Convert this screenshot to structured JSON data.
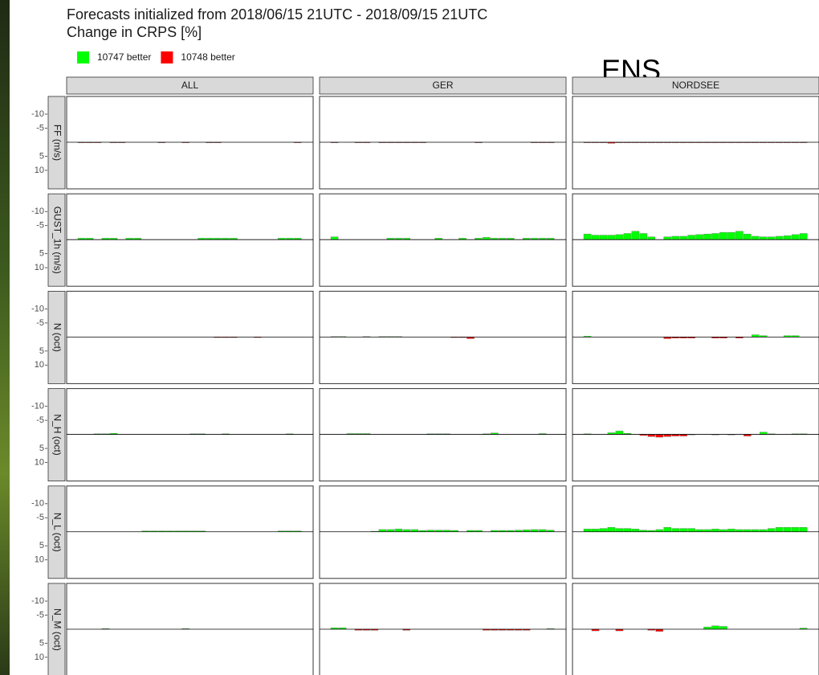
{
  "chart_data": {
    "type": "facet-bar",
    "title": "Forecasts initialized from 2018/06/15 21UTC - 2018/09/15 21UTC",
    "subtitle": "Change in CRPS [%]",
    "overlay": "ENS",
    "series": [
      {
        "name": "10747 better",
        "color": "#00ff00"
      },
      {
        "name": "10748 better",
        "color": "#ff0000"
      }
    ],
    "columns": [
      "ALL",
      "GER",
      "NORDSEE"
    ],
    "rows": [
      "FF (m/s)",
      "GUST_1h (m/s)",
      "N (oct)",
      "N_H (oct)",
      "N_L (oct)",
      "N_M (oct)"
    ],
    "ylim": [
      -16.3,
      16.6
    ],
    "yticks": [
      -10,
      -5,
      5,
      10
    ],
    "panels": [
      [
        [
          0.2,
          0.2,
          0.2,
          0,
          0.2,
          0.2,
          0,
          0,
          0,
          0,
          0.2,
          0,
          0,
          0.2,
          0,
          0,
          0.2,
          0.2,
          0,
          0,
          0,
          0,
          0,
          0,
          0,
          0,
          0,
          0.2
        ],
        [
          0.2,
          0,
          0,
          0.2,
          0.2,
          0,
          0.2,
          0.2,
          0.2,
          0.2,
          0.2,
          0.2,
          0,
          0,
          0,
          0,
          0,
          0,
          0.2,
          0,
          0,
          0,
          0,
          0,
          0,
          0.2,
          0.2,
          0.2
        ],
        [
          0.2,
          0.2,
          0.2,
          0.4,
          0.2,
          0.2,
          0.2,
          0.2,
          0.2,
          0.2,
          0.2,
          0.2,
          0.2,
          0.2,
          0.2,
          0.2,
          0.2,
          0.2,
          0.2,
          0.2,
          0.2,
          0.2,
          0.2,
          0.2,
          0.2,
          0.2,
          0.2,
          0.2
        ]
      ],
      [
        [
          -0.5,
          -0.5,
          0,
          -0.5,
          -0.5,
          0,
          -0.5,
          -0.5,
          0,
          0,
          0,
          0,
          0,
          0,
          0,
          -0.5,
          -0.5,
          -0.5,
          -0.5,
          -0.5,
          0,
          0,
          0,
          0,
          0,
          -0.5,
          -0.5,
          -0.5
        ],
        [
          -1,
          0,
          0,
          0,
          0,
          0,
          0,
          -0.5,
          -0.5,
          -0.5,
          0,
          0,
          0,
          -0.5,
          0,
          0,
          -0.5,
          0,
          -0.5,
          -0.8,
          -0.5,
          -0.5,
          -0.5,
          0,
          -0.5,
          -0.5,
          -0.5,
          -0.5
        ],
        [
          -2,
          -1.6,
          -1.6,
          -1.6,
          -1.8,
          -2.2,
          -3,
          -2.2,
          -1,
          0,
          -1,
          -1.2,
          -1.2,
          -1.6,
          -1.8,
          -2,
          -2.2,
          -2.6,
          -2.6,
          -3,
          -2,
          -1.2,
          -1,
          -1,
          -1.2,
          -1.4,
          -1.8,
          -2.2
        ]
      ],
      [
        [
          0,
          0,
          0,
          0,
          0,
          0,
          0,
          0,
          0,
          0,
          0,
          0,
          0,
          0,
          0,
          0,
          0,
          0.2,
          0.2,
          0.2,
          0,
          0,
          0.2,
          0,
          0,
          0,
          0,
          0
        ],
        [
          -0.2,
          -0.2,
          0,
          0,
          -0.2,
          0,
          -0.2,
          -0.2,
          -0.2,
          0,
          0,
          0,
          0,
          0,
          0,
          0.2,
          0.2,
          0.6,
          0,
          0,
          0,
          0,
          0,
          0,
          0,
          0,
          0,
          0
        ],
        [
          -0.3,
          0,
          0,
          0,
          0,
          0,
          0,
          0,
          0,
          0,
          0.6,
          0.4,
          0.4,
          0.4,
          0,
          0,
          0.4,
          0.4,
          0,
          0.4,
          0,
          -0.8,
          -0.5,
          0,
          0,
          -0.5,
          -0.5,
          0
        ]
      ],
      [
        [
          0,
          0,
          -0.2,
          -0.2,
          -0.4,
          0,
          0,
          0,
          0,
          0,
          0,
          0,
          0,
          0,
          -0.2,
          -0.2,
          0,
          0,
          -0.2,
          0,
          0,
          0,
          0,
          0,
          0,
          0,
          -0.2,
          0
        ],
        [
          0,
          0,
          -0.3,
          -0.3,
          -0.3,
          0,
          0,
          0,
          0,
          0,
          0,
          0,
          -0.2,
          -0.2,
          -0.2,
          0,
          0,
          0,
          0,
          -0.2,
          -0.5,
          0,
          0,
          0,
          0,
          0,
          -0.3,
          0
        ],
        [
          -0.2,
          0,
          0,
          -0.6,
          -1.2,
          -0.4,
          0,
          0.4,
          0.8,
          1,
          0.8,
          0.6,
          0.6,
          0.2,
          0,
          0,
          0.2,
          0,
          0.2,
          0,
          0.6,
          0,
          -0.8,
          -0.2,
          0,
          0,
          -0.2,
          -0.2
        ]
      ],
      [
        [
          0,
          0,
          0,
          0,
          0,
          0,
          0,
          0,
          -0.3,
          -0.3,
          -0.3,
          -0.3,
          -0.3,
          -0.3,
          -0.3,
          -0.3,
          0,
          0,
          0,
          0,
          0,
          0,
          0,
          0,
          0,
          -0.3,
          -0.3,
          -0.3
        ],
        [
          0,
          0,
          0,
          0,
          0,
          -0.2,
          -0.8,
          -0.8,
          -1,
          -0.8,
          -0.8,
          -0.5,
          -0.6,
          -0.6,
          -0.6,
          -0.5,
          0,
          -0.5,
          -0.5,
          0,
          -0.5,
          -0.5,
          -0.5,
          -0.6,
          -0.7,
          -0.8,
          -0.8,
          -0.6
        ],
        [
          -1,
          -1,
          -1.2,
          -1.6,
          -1.2,
          -1.2,
          -1,
          -0.6,
          -0.5,
          -0.8,
          -1.6,
          -1.2,
          -1.2,
          -1.2,
          -0.8,
          -0.8,
          -1,
          -0.8,
          -1,
          -0.8,
          -0.8,
          -0.8,
          -0.8,
          -1.2,
          -1.6,
          -1.6,
          -1.6,
          -1.6
        ]
      ],
      [
        [
          0,
          0,
          0,
          -0.2,
          0,
          0,
          0,
          0,
          0,
          0,
          0,
          0,
          0,
          -0.2,
          0,
          0,
          0,
          0,
          0,
          0,
          0,
          0,
          0,
          0,
          0,
          0,
          0,
          0
        ],
        [
          -0.5,
          -0.5,
          0,
          0.4,
          0.4,
          0.4,
          0,
          0,
          0,
          0.4,
          0,
          0,
          0,
          0,
          0,
          0,
          0,
          0,
          0,
          0.4,
          0.4,
          0.4,
          0.4,
          0.4,
          0.4,
          0,
          0,
          -0.2
        ],
        [
          0,
          0.6,
          0,
          0,
          0.6,
          0,
          0,
          0,
          0.4,
          0.8,
          0,
          0,
          0,
          0,
          0,
          -0.8,
          -1.2,
          -1,
          0,
          0,
          0,
          0,
          0,
          0,
          0,
          0,
          0,
          -0.4
        ]
      ]
    ]
  }
}
